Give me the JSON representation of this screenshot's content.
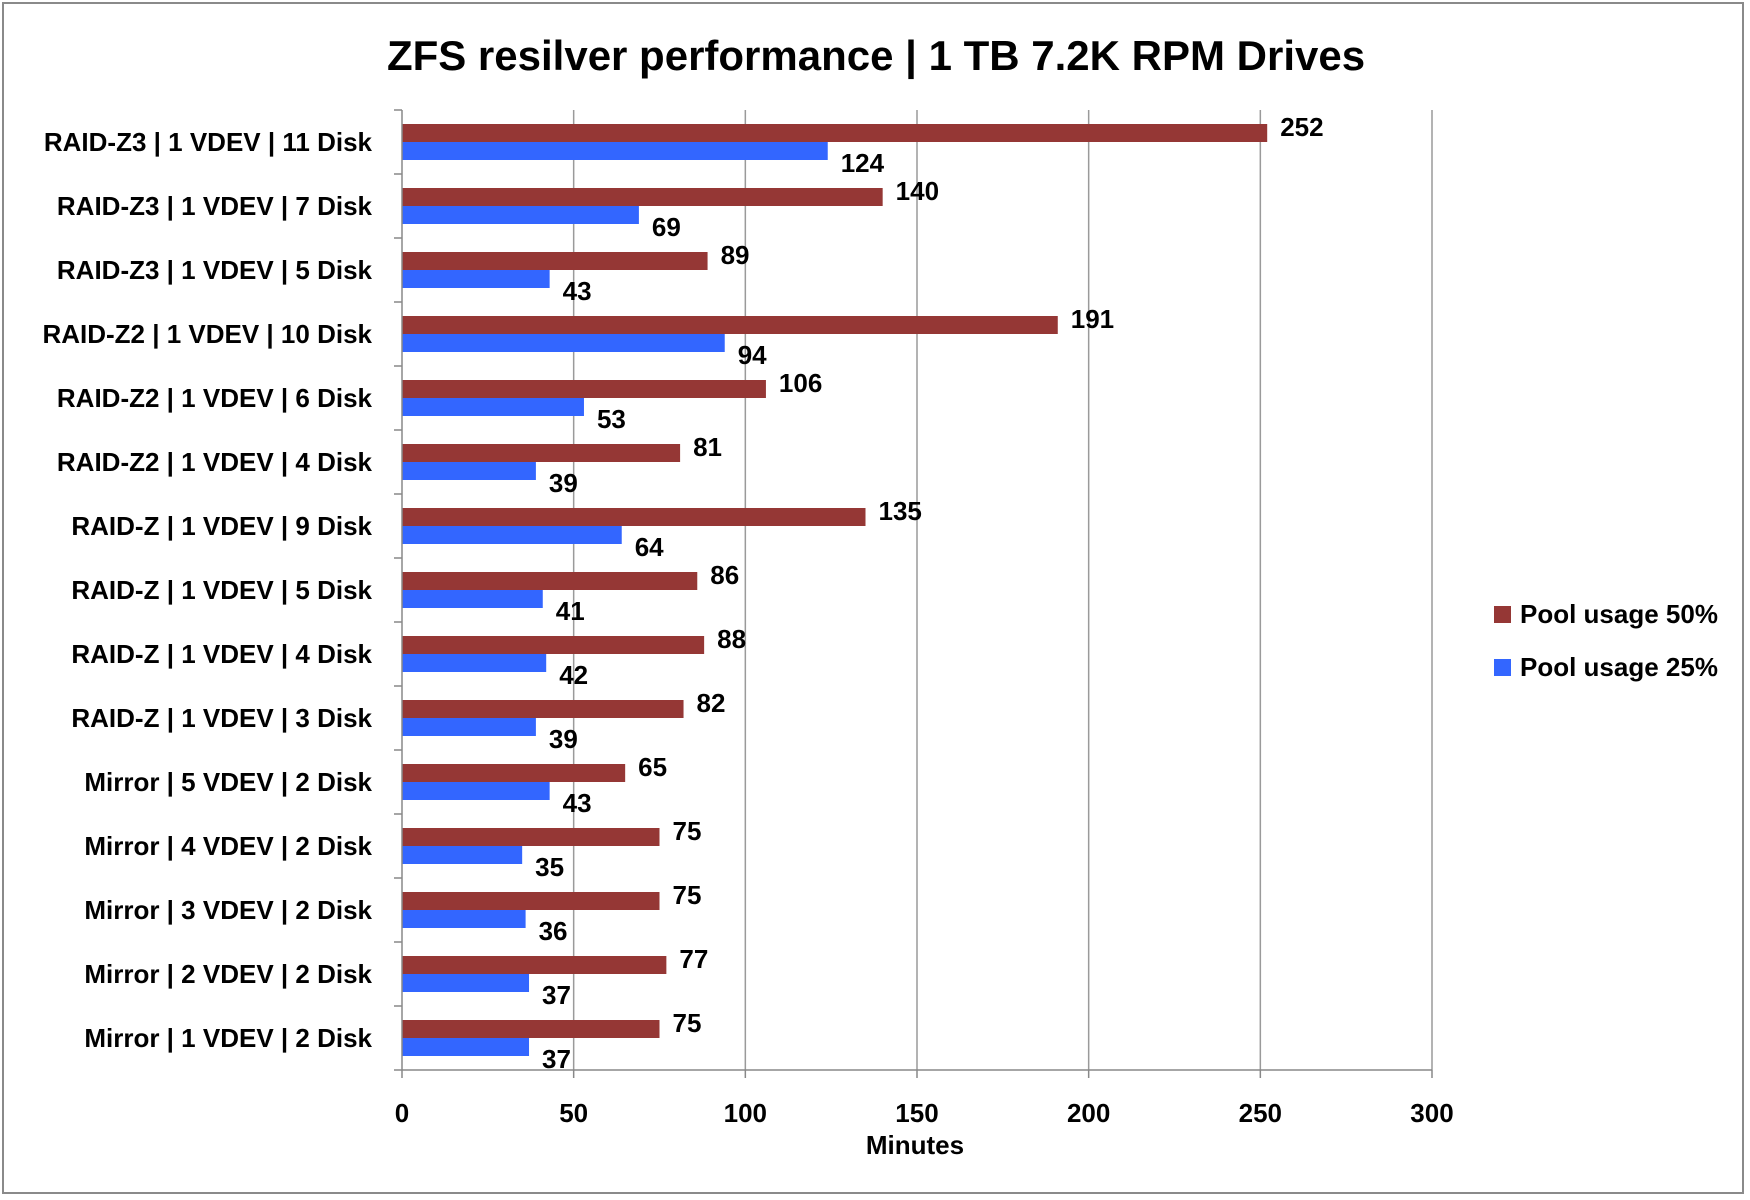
{
  "chart_data": {
    "type": "bar",
    "orientation": "horizontal",
    "title": "ZFS resilver performance | 1 TB 7.2K RPM Drives",
    "xlabel": "Minutes",
    "ylabel": "",
    "xlim": [
      0,
      300
    ],
    "x_ticks": [
      "0",
      "50",
      "100",
      "150",
      "200",
      "250",
      "300"
    ],
    "grid": "vertical",
    "legend_position": "right",
    "categories": [
      "RAID-Z3 | 1 VDEV | 11 Disk",
      "RAID-Z3 | 1 VDEV | 7 Disk",
      "RAID-Z3 | 1 VDEV | 5 Disk",
      "RAID-Z2 | 1 VDEV | 10 Disk",
      "RAID-Z2 | 1 VDEV | 6 Disk",
      "RAID-Z2 | 1 VDEV | 4 Disk",
      "RAID-Z | 1 VDEV | 9 Disk",
      "RAID-Z | 1 VDEV | 5 Disk",
      "RAID-Z | 1 VDEV | 4 Disk",
      "RAID-Z | 1 VDEV | 3 Disk",
      "Mirror | 5 VDEV | 2 Disk",
      "Mirror | 4 VDEV | 2 Disk",
      "Mirror | 3 VDEV | 2 Disk",
      "Mirror | 2 VDEV | 2 Disk",
      "Mirror | 1 VDEV | 2 Disk"
    ],
    "series": [
      {
        "name": "Pool usage 50%",
        "color": "#953735",
        "values": [
          252,
          140,
          89,
          191,
          106,
          81,
          135,
          86,
          88,
          82,
          65,
          75,
          75,
          77,
          75
        ]
      },
      {
        "name": "Pool usage 25%",
        "color": "#3366ff",
        "values": [
          124,
          69,
          43,
          94,
          53,
          39,
          64,
          41,
          42,
          39,
          43,
          35,
          36,
          37,
          37
        ]
      }
    ]
  }
}
